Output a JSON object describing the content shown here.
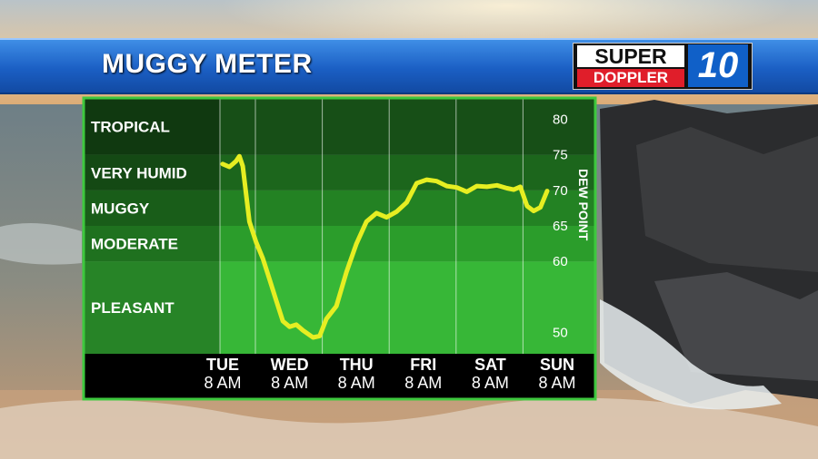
{
  "header": {
    "title": "MUGGY METER"
  },
  "logo": {
    "line1": "SUPER",
    "line2": "DOPPLER",
    "number": "10"
  },
  "chart_data": {
    "type": "line",
    "title": "MUGGY METER",
    "ylabel": "DEW POINT",
    "categories": [
      {
        "day": "TUE",
        "hour": "8 AM"
      },
      {
        "day": "WED",
        "hour": "8 AM"
      },
      {
        "day": "THU",
        "hour": "8 AM"
      },
      {
        "day": "FRI",
        "hour": "8 AM"
      },
      {
        "day": "SAT",
        "hour": "8 AM"
      },
      {
        "day": "SUN",
        "hour": "8 AM"
      }
    ],
    "yticks": [
      80,
      75,
      70,
      65,
      60,
      50
    ],
    "ylim": [
      47,
      83
    ],
    "bands": [
      {
        "label": "TROPICAL",
        "min": 75,
        "max": 83,
        "color": "#174f17"
      },
      {
        "label": "VERY HUMID",
        "min": 70,
        "max": 75,
        "color": "#1c661c"
      },
      {
        "label": "MUGGY",
        "min": 65,
        "max": 70,
        "color": "#238223"
      },
      {
        "label": "MODERATE",
        "min": 60,
        "max": 65,
        "color": "#2b9d2b"
      },
      {
        "label": "PLEASANT",
        "min": 47,
        "max": 60,
        "color": "#37b737"
      }
    ],
    "series": [
      {
        "color": "#e6ee22",
        "points": [
          [
            0.0,
            73.7
          ],
          [
            0.1,
            73.3
          ],
          [
            0.2,
            74.1
          ],
          [
            0.25,
            74.8
          ],
          [
            0.3,
            73.4
          ],
          [
            0.4,
            65.6
          ],
          [
            0.5,
            62.7
          ],
          [
            0.6,
            60.4
          ],
          [
            0.7,
            57.5
          ],
          [
            0.8,
            54.5
          ],
          [
            0.9,
            51.6
          ],
          [
            1.0,
            50.8
          ],
          [
            1.1,
            51.1
          ],
          [
            1.2,
            50.3
          ],
          [
            1.35,
            49.3
          ],
          [
            1.45,
            49.5
          ],
          [
            1.55,
            51.9
          ],
          [
            1.7,
            53.7
          ],
          [
            1.85,
            58.5
          ],
          [
            2.0,
            62.5
          ],
          [
            2.15,
            65.6
          ],
          [
            2.3,
            66.8
          ],
          [
            2.45,
            66.2
          ],
          [
            2.6,
            67.0
          ],
          [
            2.75,
            68.3
          ],
          [
            2.9,
            71.0
          ],
          [
            3.05,
            71.5
          ],
          [
            3.2,
            71.3
          ],
          [
            3.35,
            70.6
          ],
          [
            3.5,
            70.4
          ],
          [
            3.65,
            69.8
          ],
          [
            3.8,
            70.6
          ],
          [
            3.95,
            70.5
          ],
          [
            4.1,
            70.7
          ],
          [
            4.25,
            70.3
          ],
          [
            4.35,
            70.1
          ],
          [
            4.45,
            70.5
          ],
          [
            4.55,
            67.8
          ],
          [
            4.65,
            67.1
          ],
          [
            4.75,
            67.6
          ],
          [
            4.85,
            69.9
          ]
        ]
      }
    ]
  }
}
